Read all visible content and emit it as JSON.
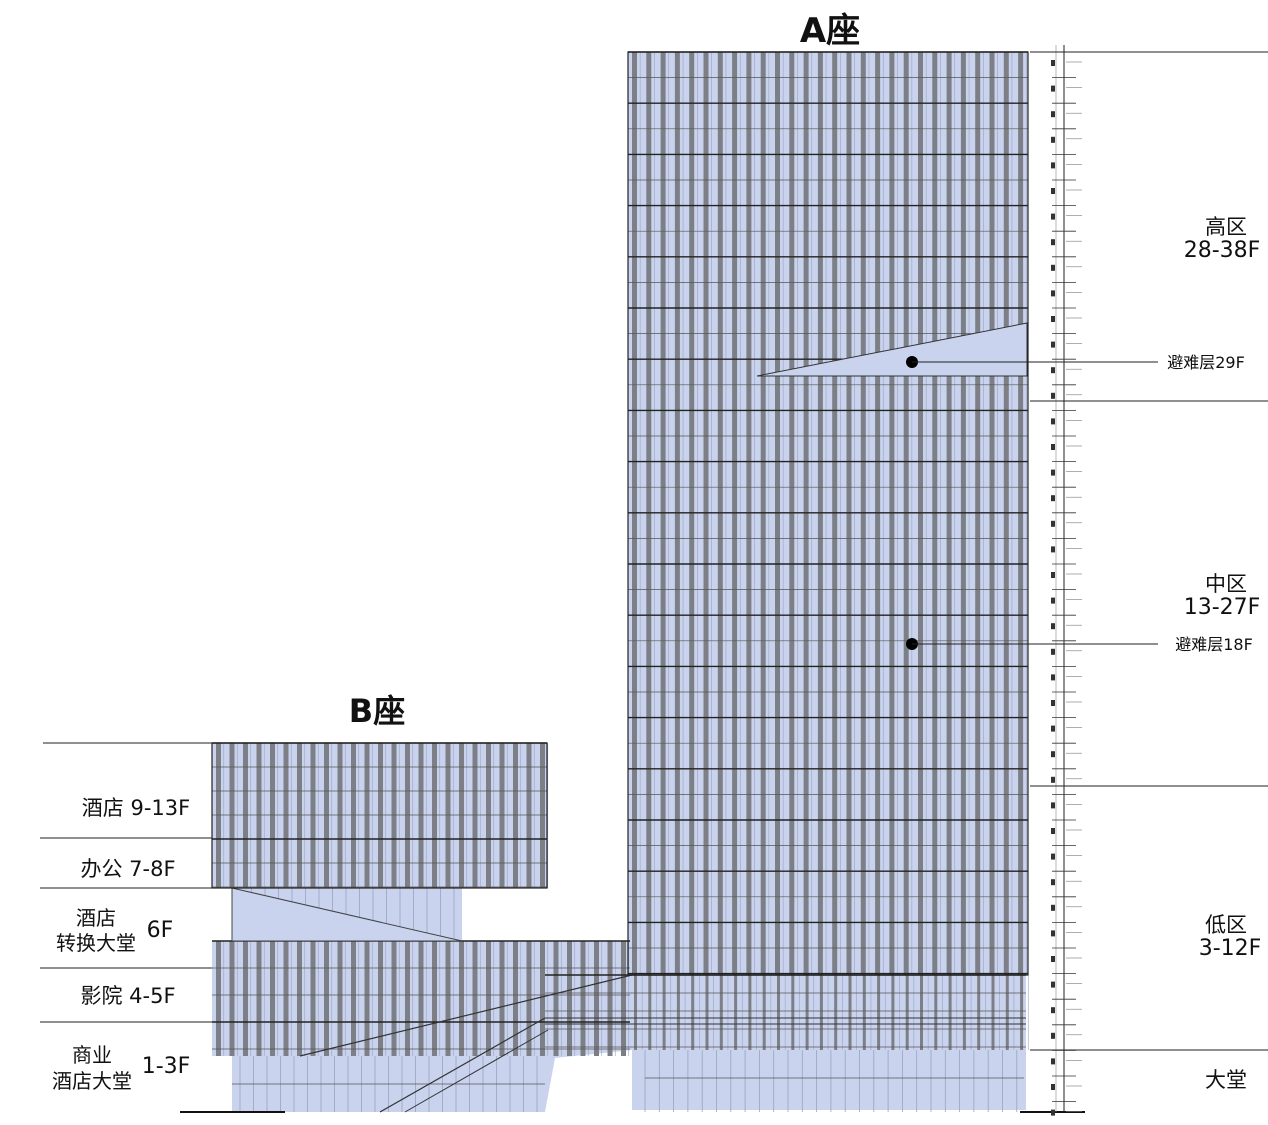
{
  "tower_a": {
    "title": "A座"
  },
  "tower_b": {
    "title": "B座"
  },
  "zones_a": [
    {
      "name": "高区",
      "range": "28-38F"
    },
    {
      "name": "中区",
      "range": "13-27F"
    },
    {
      "name": "低区",
      "range": "3-12F"
    },
    {
      "name": "lobby",
      "label": "大堂"
    }
  ],
  "refuge_floors": [
    {
      "label": "避难层29F"
    },
    {
      "label": "避难层18F"
    }
  ],
  "zones_b": [
    {
      "label": "酒店 9-13F"
    },
    {
      "label": "办公 7-8F"
    },
    {
      "line1": "酒店",
      "line2": "转换大堂",
      "floor": "6F"
    },
    {
      "label": "影院 4-5F"
    },
    {
      "line1": "商业",
      "line2": "酒店大堂",
      "floor": "1-3F"
    }
  ],
  "colors": {
    "glass": "#c9d3ee",
    "mullion": "#7d7f86",
    "line": "#1a1a1a"
  }
}
